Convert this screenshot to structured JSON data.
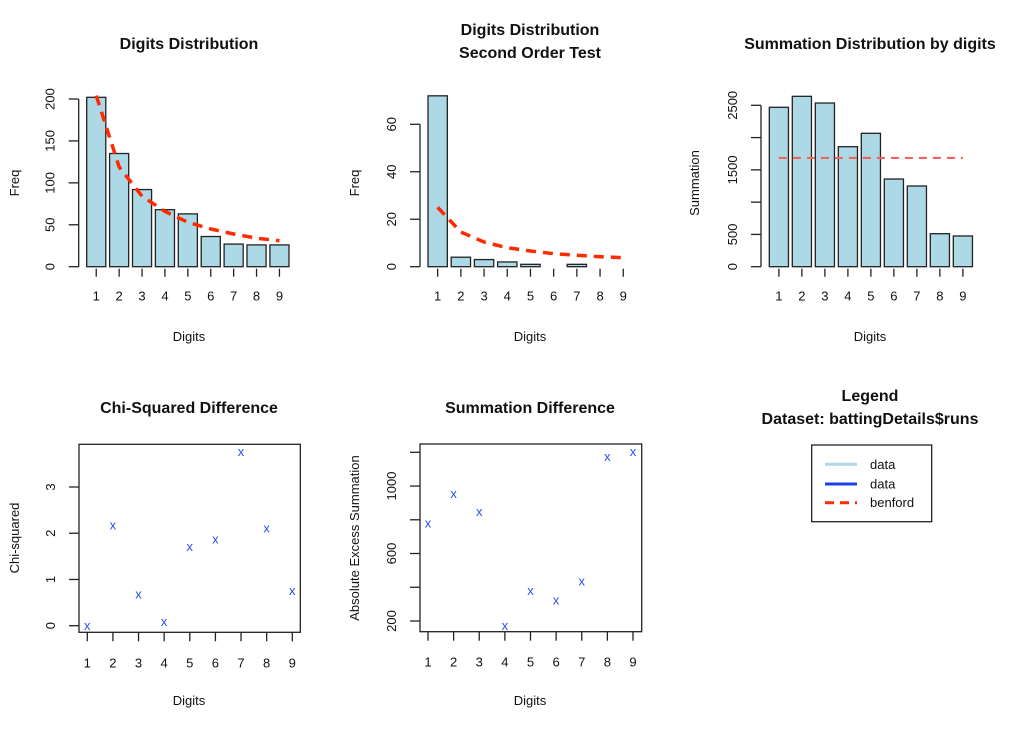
{
  "colors": {
    "bar_fill": "#ADD8E6",
    "bar_stroke": "#222222",
    "benford_line": "#FF2A00",
    "mean_line": "#F0645C",
    "point": "#2B4FF2",
    "legend_data_light": "#ADD8E6",
    "legend_data_dark": "#1F3FEA",
    "legend_benford": "#FF2A00"
  },
  "legend": {
    "title": "Legend",
    "subtitle": "Dataset: battingDetails$runs",
    "entries": [
      {
        "label": "data",
        "style": "solid",
        "color_key": "legend_data_light"
      },
      {
        "label": "data",
        "style": "solid",
        "color_key": "legend_data_dark"
      },
      {
        "label": "benford",
        "style": "dashed",
        "color_key": "legend_benford"
      }
    ]
  },
  "chart_data": [
    {
      "id": "digits-distribution",
      "type": "bar",
      "title": "Digits Distribution",
      "xlabel": "Digits",
      "ylabel": "Freq",
      "categories": [
        "1",
        "2",
        "3",
        "4",
        "5",
        "6",
        "7",
        "8",
        "9"
      ],
      "series": [
        {
          "name": "data",
          "values": [
            202,
            135,
            92,
            68,
            63,
            36,
            27,
            26,
            26
          ]
        },
        {
          "name": "benford",
          "style": "dashed",
          "values": [
            204,
            119,
            84,
            66,
            53,
            45,
            39,
            34,
            31
          ]
        }
      ],
      "ylim": [
        0,
        200
      ],
      "yticks": [
        0,
        50,
        100,
        150,
        200
      ],
      "grid": false
    },
    {
      "id": "second-order-test",
      "type": "bar",
      "title": "Digits Distribution\nSecond Order Test",
      "title_lines": [
        "Digits Distribution",
        "Second Order Test"
      ],
      "xlabel": "Digits",
      "ylabel": "Freq",
      "categories": [
        "1",
        "2",
        "3",
        "4",
        "5",
        "6",
        "7",
        "8",
        "9"
      ],
      "series": [
        {
          "name": "data",
          "values": [
            72,
            4,
            3,
            2,
            1,
            0,
            1,
            0,
            0
          ]
        },
        {
          "name": "benford",
          "style": "dashed",
          "values": [
            25,
            14.6,
            10.4,
            8.0,
            6.6,
            5.5,
            4.8,
            4.2,
            3.8
          ]
        }
      ],
      "ylim": [
        0,
        60
      ],
      "yticks": [
        0,
        20,
        40,
        60
      ],
      "grid": false
    },
    {
      "id": "summation-distribution",
      "type": "bar",
      "title": "Summation Distribution by digits",
      "xlabel": "Digits",
      "ylabel": "Summation",
      "categories": [
        "1",
        "2",
        "3",
        "4",
        "5",
        "6",
        "7",
        "8",
        "9"
      ],
      "series": [
        {
          "name": "data",
          "values": [
            2469,
            2639,
            2535,
            1859,
            2066,
            1358,
            1250,
            511,
            476
          ]
        },
        {
          "name": "mean",
          "style": "dashed",
          "values": [
            1685,
            1685,
            1685,
            1685,
            1685,
            1685,
            1685,
            1685,
            1685
          ]
        }
      ],
      "ylim": [
        0,
        2500
      ],
      "yticks": [
        0,
        500,
        1000,
        1500,
        2000,
        2500
      ],
      "ytick_labels": [
        "0",
        "500",
        "",
        "1500",
        "",
        "2500"
      ],
      "grid": false
    },
    {
      "id": "chi-squared-difference",
      "type": "scatter",
      "title": "Chi-Squared Difference",
      "xlabel": "Digits",
      "ylabel": "Chi-squared",
      "marker": "x",
      "x": [
        1,
        2,
        3,
        4,
        5,
        6,
        7,
        8,
        9
      ],
      "y": [
        0.0,
        2.18,
        0.69,
        0.09,
        1.71,
        1.87,
        3.77,
        2.11,
        0.76
      ],
      "xlim": [
        1,
        9
      ],
      "ylim": [
        0,
        3.77
      ],
      "xticks": [
        1,
        2,
        3,
        4,
        5,
        6,
        7,
        8,
        9
      ],
      "yticks": [
        0,
        1,
        2,
        3
      ],
      "grid": false
    },
    {
      "id": "summation-difference",
      "type": "scatter",
      "title": "Summation Difference",
      "xlabel": "Digits",
      "ylabel": "Absolute Excess Summation",
      "marker": "x",
      "x": [
        1,
        2,
        3,
        4,
        5,
        6,
        7,
        8,
        9
      ],
      "y": [
        780,
        956,
        849,
        172,
        380,
        325,
        436,
        1174,
        1206
      ],
      "xlim": [
        1,
        9
      ],
      "ylim": [
        172,
        1206
      ],
      "xticks": [
        1,
        2,
        3,
        4,
        5,
        6,
        7,
        8,
        9
      ],
      "yticks": [
        200,
        400,
        600,
        800,
        1000,
        1200
      ],
      "ytick_labels": [
        "200",
        "",
        "600",
        "",
        "1000",
        ""
      ],
      "grid": false
    }
  ]
}
